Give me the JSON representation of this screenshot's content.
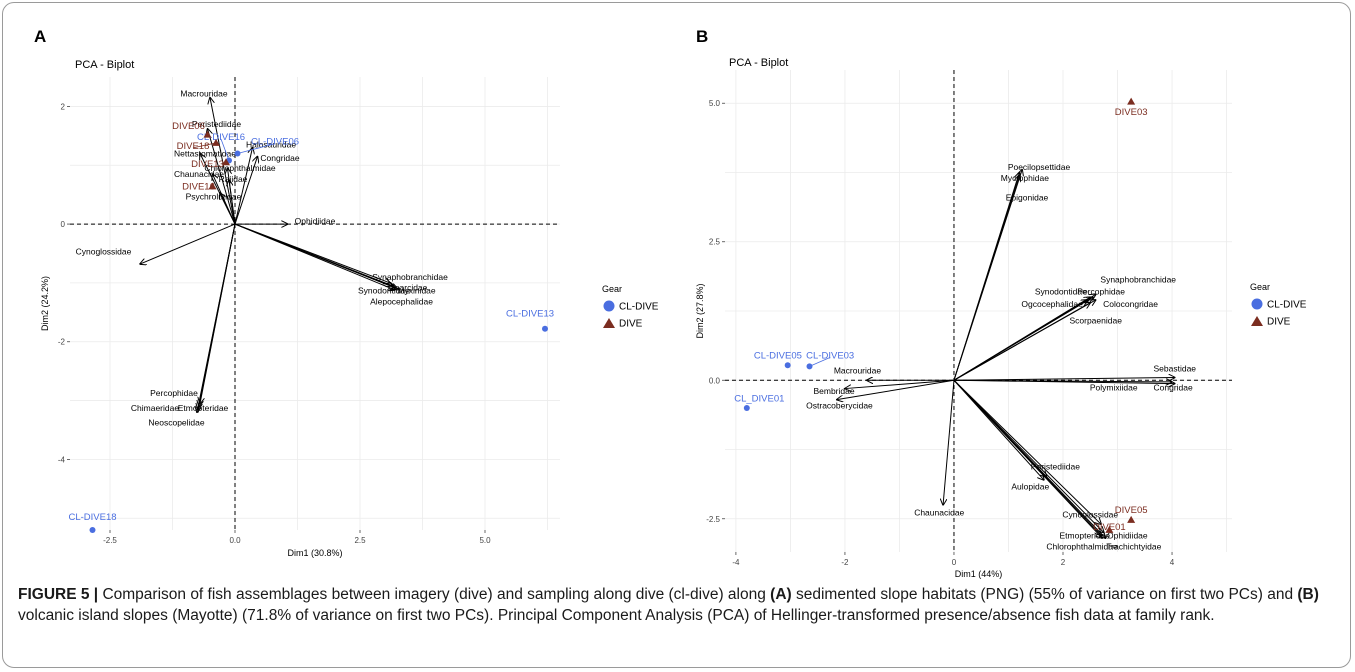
{
  "figure": {
    "caption_label": "FIGURE 5 |",
    "caption_parts": [
      {
        "text": " Comparison of fish assemblages between imagery (dive) and sampling along dive (cl-dive) along ",
        "bold": false
      },
      {
        "text": "(A)",
        "bold": true
      },
      {
        "text": " sedimented slope habitats (PNG) (55% of variance on first two PCs) and ",
        "bold": false
      },
      {
        "text": "(B)",
        "bold": true
      },
      {
        "text": " volcanic island slopes (Mayotte) (71.8% of variance on first two PCs). Principal Component Analysis (PCA) of Hellinger-transformed presence/absence fish data at family rank.",
        "bold": false
      }
    ]
  },
  "colors": {
    "cl_dive": "#4a6ee0",
    "dive": "#7b2d20",
    "grid": "#ebebeb",
    "axis_text": "#444444"
  },
  "chart_data": [
    {
      "panel": "A",
      "type": "scatter",
      "title": "PCA - Biplot",
      "xlabel": "Dim1 (30.8%)",
      "ylabel": "Dim2 (24.2%)",
      "xlim": [
        -3.3,
        6.5
      ],
      "ylim": [
        -5.2,
        2.5
      ],
      "xticks": [
        -2.5,
        0.0,
        2.5,
        5.0
      ],
      "xtick_labels": [
        "-2.5",
        "0.0",
        "2.5",
        "5.0"
      ],
      "yticks": [
        -4,
        -2,
        0,
        2
      ],
      "ytick_labels": [
        "-4",
        "-2",
        "0",
        "2"
      ],
      "legend_title": "Gear",
      "legend_entries": [
        "CL-DIVE",
        "DIVE"
      ],
      "legend_position": "right",
      "grid": true,
      "points": [
        {
          "label": "CL-DIVE06",
          "gear": "CL-DIVE",
          "x": 0.05,
          "y": 1.2,
          "lx": 0.8,
          "ly": 1.4
        },
        {
          "label": "CL-DIVE16",
          "gear": "CL-DIVE",
          "x": -0.12,
          "y": 1.08,
          "lx": -0.28,
          "ly": 1.48
        },
        {
          "label": "CL-DIVE13",
          "gear": "CL-DIVE",
          "x": 6.2,
          "y": -1.78,
          "lx": 5.9,
          "ly": -1.52
        },
        {
          "label": "CL-DIVE18",
          "gear": "CL-DIVE",
          "x": -2.85,
          "y": -5.2,
          "lx": -2.85,
          "ly": -4.98
        },
        {
          "label": "DIVE06",
          "gear": "DIVE",
          "x": -0.55,
          "y": 1.52,
          "lx": -0.93,
          "ly": 1.67
        },
        {
          "label": "DIVE18",
          "gear": "DIVE",
          "x": -0.38,
          "y": 1.38,
          "lx": -0.84,
          "ly": 1.33
        },
        {
          "label": "DIVE13",
          "gear": "DIVE",
          "x": -0.18,
          "y": 1.05,
          "lx": -0.55,
          "ly": 1.02
        },
        {
          "label": "DIVE16",
          "gear": "DIVE",
          "x": -0.45,
          "y": 0.64,
          "lx": -0.73,
          "ly": 0.64
        }
      ],
      "variables": [
        {
          "label": "Macrouridae",
          "x": -0.5,
          "y": 2.15,
          "lx": -0.62,
          "ly": 2.22
        },
        {
          "label": "Peristediidae",
          "x": -0.55,
          "y": 1.62,
          "lx": -0.37,
          "ly": 1.7
        },
        {
          "label": "Halosauridae",
          "x": 0.35,
          "y": 1.3,
          "lx": 0.72,
          "ly": 1.35
        },
        {
          "label": "Congridae",
          "x": 0.45,
          "y": 1.15,
          "lx": 0.9,
          "ly": 1.12
        },
        {
          "label": "Nettastomatidae",
          "x": -0.7,
          "y": 1.2,
          "lx": -0.6,
          "ly": 1.2
        },
        {
          "label": "Chlorophthalmidae",
          "x": -0.15,
          "y": 0.95,
          "lx": 0.1,
          "ly": 0.95
        },
        {
          "label": "Chaunacidae",
          "x": -0.45,
          "y": 0.85,
          "lx": -0.72,
          "ly": 0.85
        },
        {
          "label": "Rajidae",
          "x": -0.12,
          "y": 0.75,
          "lx": -0.04,
          "ly": 0.77
        },
        {
          "label": "Psychrolutidae",
          "x": -0.3,
          "y": 0.53,
          "lx": -0.43,
          "ly": 0.47
        },
        {
          "label": "Ophidiidae",
          "x": 1.05,
          "y": 0.0,
          "lx": 1.6,
          "ly": 0.05
        },
        {
          "label": "Cynoglossidae",
          "x": -1.9,
          "y": -0.68,
          "lx": -2.63,
          "ly": -0.47
        },
        {
          "label": "Synaphobranchidae",
          "x": 3.1,
          "y": -1.0,
          "lx": 3.5,
          "ly": -0.9
        },
        {
          "label": "Zoarcidae",
          "x": 3.15,
          "y": -1.05,
          "lx": 3.47,
          "ly": -1.08
        },
        {
          "label": "Synodontidae",
          "x": 3.2,
          "y": -1.08,
          "lx": 2.98,
          "ly": -1.13
        },
        {
          "label": "Myxinidae",
          "x": 3.25,
          "y": -1.1,
          "lx": 3.63,
          "ly": -1.13
        },
        {
          "label": "Alepocephalidae",
          "x": 3.2,
          "y": -1.12,
          "lx": 3.33,
          "ly": -1.32
        },
        {
          "label": "Percophidae",
          "x": -0.7,
          "y": -3.05,
          "lx": -1.22,
          "ly": -2.87
        },
        {
          "label": "Chimaeridae",
          "x": -0.72,
          "y": -3.1,
          "lx": -1.6,
          "ly": -3.13
        },
        {
          "label": "Etmopteridae",
          "x": -0.74,
          "y": -3.15,
          "lx": -0.64,
          "ly": -3.13
        },
        {
          "label": "Neoscopelidae",
          "x": -0.76,
          "y": -3.2,
          "lx": -1.17,
          "ly": -3.37
        }
      ]
    },
    {
      "panel": "B",
      "type": "scatter",
      "title": "PCA - Biplot",
      "xlabel": "Dim1 (44%)",
      "ylabel": "Dim2 (27.8%)",
      "xlim": [
        -4.2,
        5.1
      ],
      "ylim": [
        -3.1,
        5.6
      ],
      "xticks": [
        -4,
        -2,
        0,
        2,
        4
      ],
      "xtick_labels": [
        "-4",
        "-2",
        "0",
        "2",
        "4"
      ],
      "yticks": [
        -2.5,
        0.0,
        2.5,
        5.0
      ],
      "ytick_labels": [
        "-2.5",
        "0.0",
        "2.5",
        "5.0"
      ],
      "legend_title": "Gear",
      "legend_entries": [
        "CL-DIVE",
        "DIVE"
      ],
      "legend_position": "right",
      "grid": true,
      "points": [
        {
          "label": "CL-DIVE05",
          "gear": "CL-DIVE",
          "x": -3.05,
          "y": 0.27,
          "lx": -3.23,
          "ly": 0.45
        },
        {
          "label": "CL-DIVE03",
          "gear": "CL-DIVE",
          "x": -2.65,
          "y": 0.25,
          "lx": -2.27,
          "ly": 0.45
        },
        {
          "label": "CL_DIVE01",
          "gear": "CL-DIVE",
          "x": -3.8,
          "y": -0.5,
          "lx": -3.57,
          "ly": -0.33
        },
        {
          "label": "DIVE03",
          "gear": "DIVE",
          "x": 3.25,
          "y": 5.03,
          "lx": 3.25,
          "ly": 4.84
        },
        {
          "label": "DIVE05",
          "gear": "DIVE",
          "x": 3.25,
          "y": -2.52,
          "lx": 3.25,
          "ly": -2.34
        },
        {
          "label": "DIVE01",
          "gear": "DIVE",
          "x": 2.85,
          "y": -2.7,
          "lx": 2.85,
          "ly": -2.65
        }
      ],
      "variables": [
        {
          "label": "Poecilopsettidae",
          "x": 1.25,
          "y": 3.8,
          "lx": 1.56,
          "ly": 3.85
        },
        {
          "label": "Myctophidae",
          "x": 1.2,
          "y": 3.75,
          "lx": 1.3,
          "ly": 3.65
        },
        {
          "label": "Epigonidae",
          "x": 1.2,
          "y": 3.7,
          "lx": 1.34,
          "ly": 3.3
        },
        {
          "label": "Synaphobranchidae",
          "x": 2.6,
          "y": 1.55,
          "lx": 3.38,
          "ly": 1.82
        },
        {
          "label": "Synodontidae",
          "x": 2.5,
          "y": 1.5,
          "lx": 1.96,
          "ly": 1.6
        },
        {
          "label": "Percophidae",
          "x": 2.55,
          "y": 1.5,
          "lx": 2.7,
          "ly": 1.6
        },
        {
          "label": "Colocongridae",
          "x": 2.6,
          "y": 1.45,
          "lx": 3.24,
          "ly": 1.38
        },
        {
          "label": "Ogcocephalidae",
          "x": 2.45,
          "y": 1.45,
          "lx": 1.8,
          "ly": 1.38
        },
        {
          "label": "Scorpaenidae",
          "x": 2.5,
          "y": 1.4,
          "lx": 2.6,
          "ly": 1.08
        },
        {
          "label": "Sebastidae",
          "x": 4.05,
          "y": 0.05,
          "lx": 4.05,
          "ly": 0.21
        },
        {
          "label": "Polymixiidae",
          "x": 4.0,
          "y": -0.03,
          "lx": 2.93,
          "ly": -0.13
        },
        {
          "label": "Congridae",
          "x": 4.05,
          "y": -0.06,
          "lx": 4.02,
          "ly": -0.13
        },
        {
          "label": "Macrouridae",
          "x": -1.6,
          "y": 0.0,
          "lx": -1.77,
          "ly": 0.18
        },
        {
          "label": "Bembridae",
          "x": -2.0,
          "y": -0.15,
          "lx": -2.2,
          "ly": -0.19
        },
        {
          "label": "Ostracoberycidae",
          "x": -2.15,
          "y": -0.35,
          "lx": -2.1,
          "ly": -0.46
        },
        {
          "label": "Peristediidae",
          "x": 1.7,
          "y": -1.75,
          "lx": 1.86,
          "ly": -1.56
        },
        {
          "label": "Aulopidae",
          "x": 1.65,
          "y": -1.8,
          "lx": 1.4,
          "ly": -1.92
        },
        {
          "label": "Chaunacidae",
          "x": -0.2,
          "y": -2.25,
          "lx": -0.27,
          "ly": -2.39
        },
        {
          "label": "Cynoglossidae",
          "x": 2.7,
          "y": -2.6,
          "lx": 2.5,
          "ly": -2.42
        },
        {
          "label": "Ophidiidae",
          "x": 2.75,
          "y": -2.75,
          "lx": 3.18,
          "ly": -2.8
        },
        {
          "label": "Etmopteridae",
          "x": 2.7,
          "y": -2.8,
          "lx": 2.4,
          "ly": -2.8
        },
        {
          "label": "Chlorophthalmidae",
          "x": 2.72,
          "y": -2.85,
          "lx": 2.35,
          "ly": -3.0
        },
        {
          "label": "Trachichtyidae",
          "x": 2.78,
          "y": -2.85,
          "lx": 3.3,
          "ly": -3.0
        }
      ]
    }
  ]
}
